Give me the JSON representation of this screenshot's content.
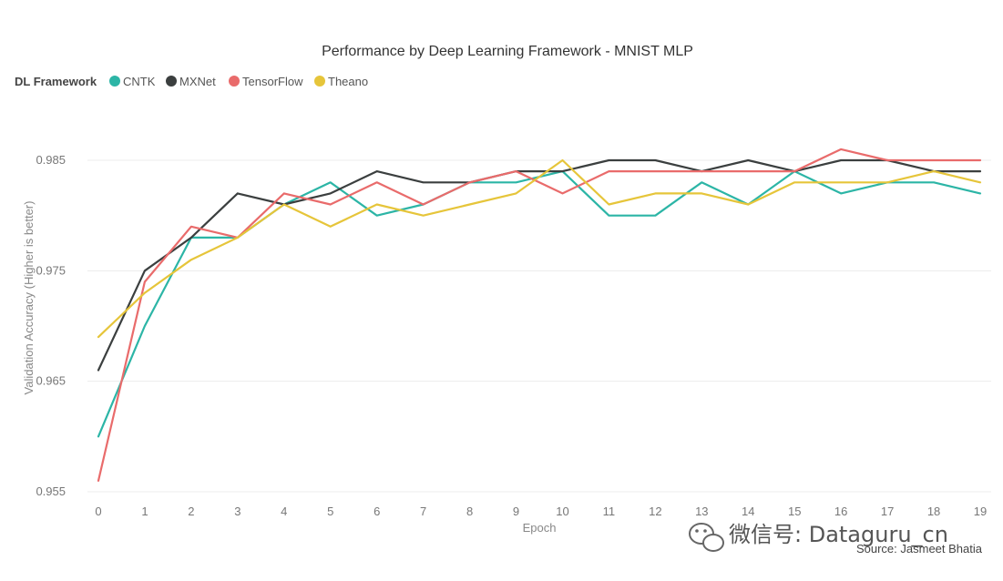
{
  "chart_data": {
    "type": "line",
    "title": "Performance by Deep Learning Framework - MNIST MLP",
    "legend_title": "DL Framework",
    "legend_position": "top-left",
    "xlabel": "Epoch",
    "ylabel": "Validation Accuracy (Higher is better)",
    "x": [
      0,
      1,
      2,
      3,
      4,
      5,
      6,
      7,
      8,
      9,
      10,
      11,
      12,
      13,
      14,
      15,
      16,
      17,
      18,
      19
    ],
    "y_ticks": [
      "0.955",
      "0.965",
      "0.975",
      "0.985"
    ],
    "ylim": [
      0.955,
      0.9875
    ],
    "grid": true,
    "series": [
      {
        "name": "CNTK",
        "color": "#2cb5a6",
        "values": [
          0.96,
          0.97,
          0.978,
          0.978,
          0.981,
          0.983,
          0.98,
          0.981,
          0.983,
          0.983,
          0.984,
          0.98,
          0.98,
          0.983,
          0.981,
          0.984,
          0.982,
          0.983,
          0.983,
          0.982
        ]
      },
      {
        "name": "MXNet",
        "color": "#3b3f3f",
        "values": [
          0.966,
          0.975,
          0.978,
          0.982,
          0.981,
          0.982,
          0.984,
          0.983,
          0.983,
          0.984,
          0.984,
          0.985,
          0.985,
          0.984,
          0.985,
          0.984,
          0.985,
          0.985,
          0.984,
          0.984
        ]
      },
      {
        "name": "TensorFlow",
        "color": "#e96b6b",
        "values": [
          0.956,
          0.974,
          0.979,
          0.978,
          0.982,
          0.981,
          0.983,
          0.981,
          0.983,
          0.984,
          0.982,
          0.984,
          0.984,
          0.984,
          0.984,
          0.984,
          0.986,
          0.985,
          0.985,
          0.985
        ]
      },
      {
        "name": "Theano",
        "color": "#e6c53a",
        "values": [
          0.969,
          0.973,
          0.976,
          0.978,
          0.981,
          0.979,
          0.981,
          0.98,
          0.981,
          0.982,
          0.985,
          0.981,
          0.982,
          0.982,
          0.981,
          0.983,
          0.983,
          0.983,
          0.984,
          0.983
        ]
      }
    ]
  },
  "source": "Source: Jasmeet Bhatia",
  "watermark": "微信号: Dataguru_cn"
}
